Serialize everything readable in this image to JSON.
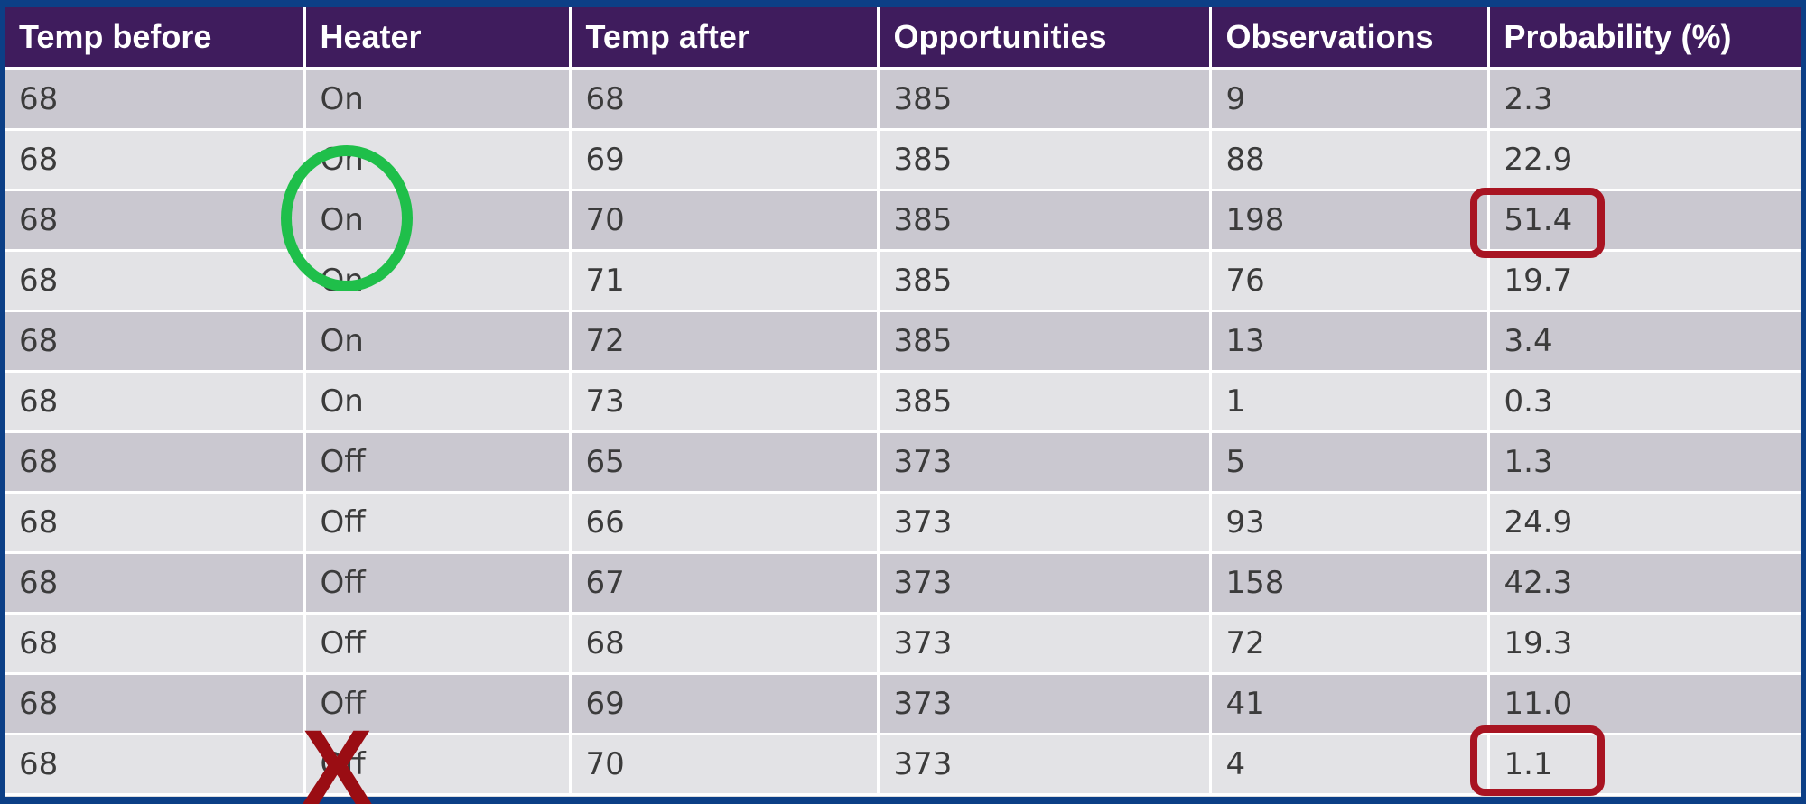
{
  "table": {
    "headers": [
      "Temp before",
      "Heater",
      "Temp after",
      "Opportunities",
      "Observations",
      "Probability (%)"
    ],
    "rows": [
      [
        "68",
        "On",
        "68",
        "385",
        "9",
        "2.3"
      ],
      [
        "68",
        "On",
        "69",
        "385",
        "88",
        "22.9"
      ],
      [
        "68",
        "On",
        "70",
        "385",
        "198",
        "51.4"
      ],
      [
        "68",
        "On",
        "71",
        "385",
        "76",
        "19.7"
      ],
      [
        "68",
        "On",
        "72",
        "385",
        "13",
        "3.4"
      ],
      [
        "68",
        "On",
        "73",
        "385",
        "1",
        "0.3"
      ],
      [
        "68",
        "Off",
        "65",
        "373",
        "5",
        "1.3"
      ],
      [
        "68",
        "Off",
        "66",
        "373",
        "93",
        "24.9"
      ],
      [
        "68",
        "Off",
        "67",
        "373",
        "158",
        "42.3"
      ],
      [
        "68",
        "Off",
        "68",
        "373",
        "72",
        "19.3"
      ],
      [
        "68",
        "Off",
        "69",
        "373",
        "41",
        "11.0"
      ],
      [
        "68",
        "Off",
        "70",
        "373",
        "4",
        "1.1"
      ]
    ]
  },
  "annotations": {
    "green_circle_color": "#1fbf4a",
    "red_box_color": "#a81422",
    "cross_color": "#9a0d13",
    "cross_mark": "X"
  }
}
